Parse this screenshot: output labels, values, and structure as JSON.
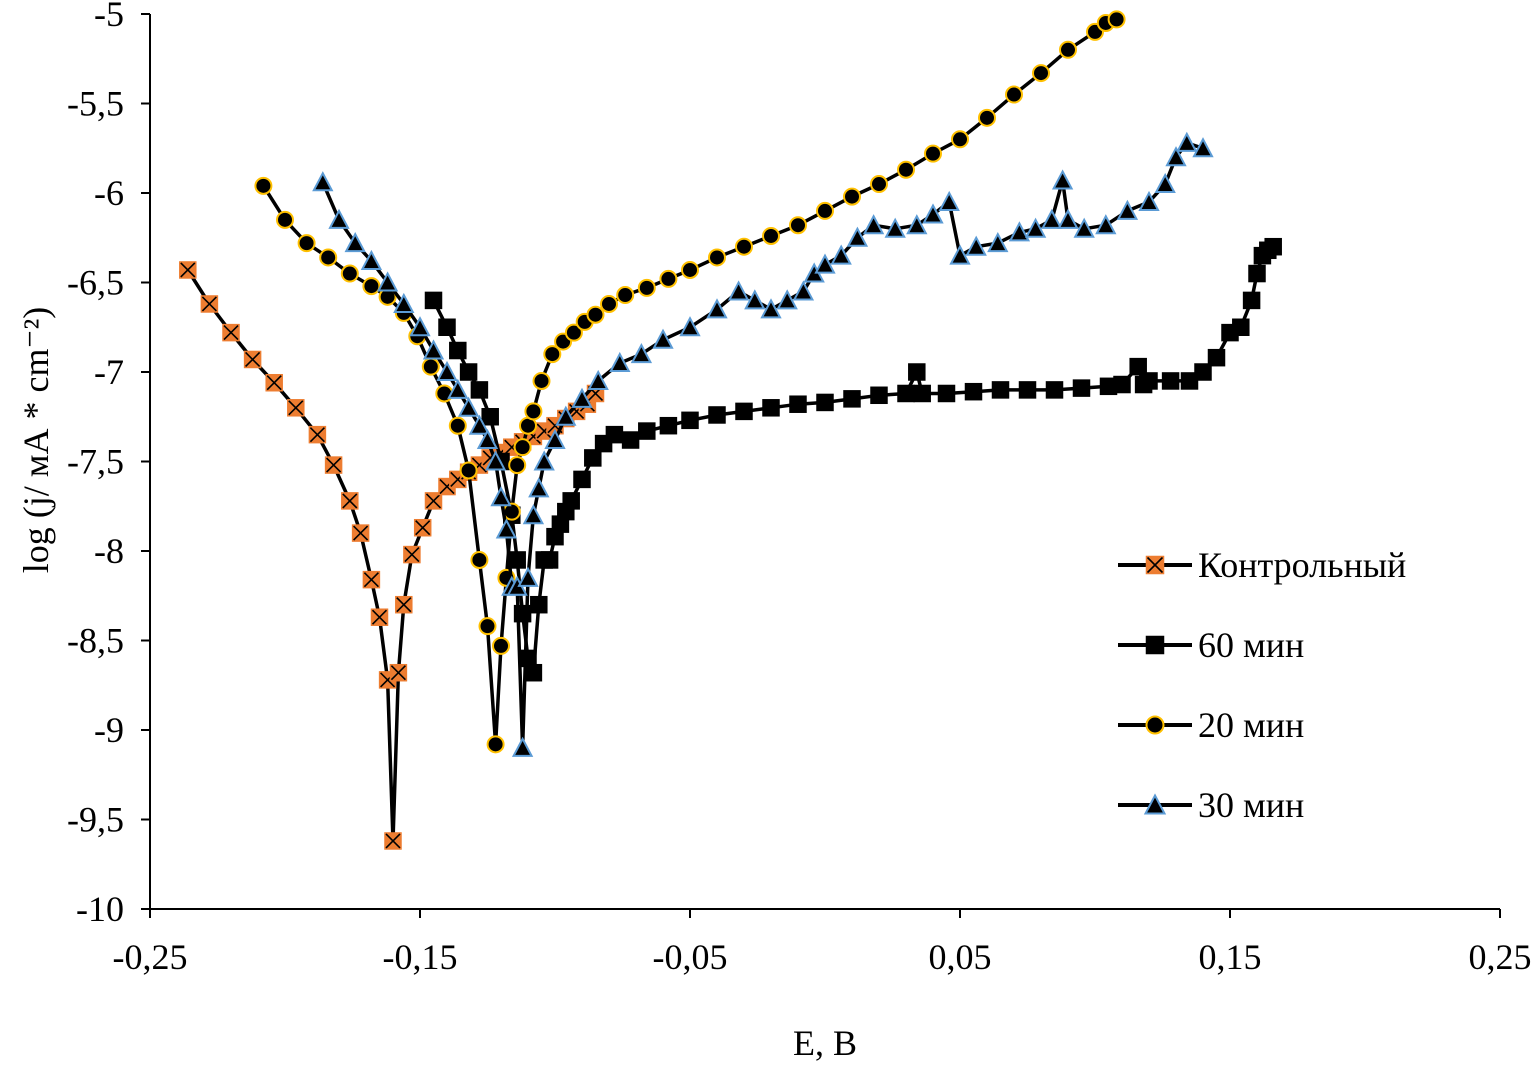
{
  "chart_data": {
    "type": "line",
    "title": "",
    "xlabel": "E, В",
    "ylabel": "log (j/ мА * cm⁻²)",
    "xlim": [
      -0.25,
      0.25
    ],
    "ylim": [
      -10,
      -5
    ],
    "x_ticks": [
      -0.25,
      -0.15,
      -0.05,
      0.05,
      0.15,
      0.25
    ],
    "x_tick_labels": [
      "-0,25",
      "-0,15",
      "-0,05",
      "0,05",
      "0,15",
      "0,25"
    ],
    "y_ticks": [
      -10,
      -9.5,
      -9,
      -8.5,
      -8,
      -7.5,
      -7,
      -6.5,
      -6,
      -5.5,
      -5
    ],
    "y_tick_labels": [
      "-10",
      "-9,5",
      "-9",
      "-8,5",
      "-8",
      "-7,5",
      "-7",
      "-6,5",
      "-6",
      "-5,5",
      "-5"
    ],
    "grid": false,
    "legend_position": "right",
    "series": [
      {
        "name": "Контрольный",
        "marker": "x-square",
        "line_color": "#000000",
        "marker_fill": "#ed7d31",
        "marker_stroke": "#ed7d31",
        "x": [
          -0.236,
          -0.228,
          -0.22,
          -0.212,
          -0.204,
          -0.196,
          -0.188,
          -0.182,
          -0.176,
          -0.172,
          -0.168,
          -0.165,
          -0.162,
          -0.16,
          -0.158,
          -0.156,
          -0.153,
          -0.149,
          -0.145,
          -0.14,
          -0.136,
          -0.132,
          -0.128,
          -0.124,
          -0.12,
          -0.116,
          -0.112,
          -0.108,
          -0.104,
          -0.1,
          -0.096,
          -0.092,
          -0.088,
          -0.085
        ],
        "y": [
          -6.43,
          -6.62,
          -6.78,
          -6.93,
          -7.06,
          -7.2,
          -7.35,
          -7.52,
          -7.72,
          -7.9,
          -8.16,
          -8.37,
          -8.72,
          -9.62,
          -8.68,
          -8.3,
          -8.02,
          -7.87,
          -7.72,
          -7.64,
          -7.6,
          -7.56,
          -7.52,
          -7.48,
          -7.45,
          -7.42,
          -7.39,
          -7.36,
          -7.33,
          -7.3,
          -7.26,
          -7.22,
          -7.18,
          -7.12
        ]
      },
      {
        "name": "60 мин",
        "marker": "square",
        "line_color": "#000000",
        "marker_fill": "#000000",
        "marker_stroke": "#000000",
        "x": [
          -0.145,
          -0.14,
          -0.136,
          -0.132,
          -0.128,
          -0.124,
          -0.12,
          -0.116,
          -0.114,
          -0.112,
          -0.11,
          -0.108,
          -0.106,
          -0.104,
          -0.102,
          -0.1,
          -0.098,
          -0.096,
          -0.094,
          -0.09,
          -0.086,
          -0.082,
          -0.078,
          -0.072,
          -0.066,
          -0.058,
          -0.05,
          -0.04,
          -0.03,
          -0.02,
          -0.01,
          0.0,
          0.01,
          0.02,
          0.03,
          0.034,
          0.036,
          0.045,
          0.055,
          0.065,
          0.075,
          0.085,
          0.095,
          0.105,
          0.11,
          0.116,
          0.118,
          0.12,
          0.128,
          0.135,
          0.14,
          0.145,
          0.15,
          0.154,
          0.158,
          0.16,
          0.162,
          0.164,
          0.166
        ],
        "y": [
          -6.6,
          -6.75,
          -6.88,
          -7.0,
          -7.1,
          -7.25,
          -7.5,
          -7.8,
          -8.05,
          -8.35,
          -8.6,
          -8.68,
          -8.3,
          -8.05,
          -8.05,
          -7.92,
          -7.85,
          -7.78,
          -7.72,
          -7.6,
          -7.48,
          -7.4,
          -7.35,
          -7.38,
          -7.33,
          -7.3,
          -7.27,
          -7.24,
          -7.22,
          -7.2,
          -7.18,
          -7.17,
          -7.15,
          -7.13,
          -7.12,
          -7.0,
          -7.12,
          -7.12,
          -7.11,
          -7.1,
          -7.1,
          -7.1,
          -7.09,
          -7.08,
          -7.07,
          -6.97,
          -7.07,
          -7.05,
          -7.05,
          -7.05,
          -7.0,
          -6.92,
          -6.78,
          -6.75,
          -6.6,
          -6.45,
          -6.35,
          -6.32,
          -6.3
        ]
      },
      {
        "name": "20 мин",
        "marker": "circle",
        "line_color": "#000000",
        "marker_fill": "#000000",
        "marker_stroke": "#ffc000",
        "x": [
          -0.208,
          -0.2,
          -0.192,
          -0.184,
          -0.176,
          -0.168,
          -0.162,
          -0.156,
          -0.151,
          -0.146,
          -0.141,
          -0.136,
          -0.132,
          -0.128,
          -0.125,
          -0.122,
          -0.12,
          -0.118,
          -0.116,
          -0.114,
          -0.112,
          -0.11,
          -0.108,
          -0.105,
          -0.101,
          -0.097,
          -0.093,
          -0.089,
          -0.085,
          -0.08,
          -0.074,
          -0.066,
          -0.058,
          -0.05,
          -0.04,
          -0.03,
          -0.02,
          -0.01,
          0.0,
          0.01,
          0.02,
          0.03,
          0.04,
          0.05,
          0.06,
          0.07,
          0.08,
          0.09,
          0.1,
          0.104,
          0.108
        ],
        "y": [
          -5.96,
          -6.15,
          -6.28,
          -6.36,
          -6.45,
          -6.52,
          -6.58,
          -6.67,
          -6.8,
          -6.97,
          -7.12,
          -7.3,
          -7.55,
          -8.05,
          -8.42,
          -9.08,
          -8.53,
          -8.15,
          -7.78,
          -7.52,
          -7.42,
          -7.3,
          -7.22,
          -7.05,
          -6.9,
          -6.83,
          -6.78,
          -6.72,
          -6.68,
          -6.62,
          -6.57,
          -6.53,
          -6.48,
          -6.43,
          -6.36,
          -6.3,
          -6.24,
          -6.18,
          -6.1,
          -6.02,
          -5.95,
          -5.87,
          -5.78,
          -5.7,
          -5.58,
          -5.45,
          -5.33,
          -5.2,
          -5.1,
          -5.05,
          -5.03
        ]
      },
      {
        "name": "30 мин",
        "marker": "triangle",
        "line_color": "#000000",
        "marker_fill": "#000000",
        "marker_stroke": "#5b9bd5",
        "x": [
          -0.186,
          -0.18,
          -0.174,
          -0.168,
          -0.162,
          -0.156,
          -0.15,
          -0.145,
          -0.14,
          -0.136,
          -0.132,
          -0.128,
          -0.125,
          -0.122,
          -0.12,
          -0.118,
          -0.116,
          -0.114,
          -0.112,
          -0.11,
          -0.108,
          -0.106,
          -0.104,
          -0.1,
          -0.096,
          -0.09,
          -0.084,
          -0.076,
          -0.068,
          -0.06,
          -0.05,
          -0.04,
          -0.032,
          -0.026,
          -0.02,
          -0.014,
          -0.008,
          -0.004,
          0.0,
          0.006,
          0.012,
          0.018,
          0.026,
          0.034,
          0.04,
          0.046,
          0.05,
          0.056,
          0.064,
          0.072,
          0.078,
          0.084,
          0.088,
          0.09,
          0.096,
          0.104,
          0.112,
          0.12,
          0.126,
          0.13,
          0.134,
          0.14
        ],
        "y": [
          -5.94,
          -6.15,
          -6.28,
          -6.38,
          -6.5,
          -6.62,
          -6.75,
          -6.88,
          -7.0,
          -7.1,
          -7.2,
          -7.3,
          -7.38,
          -7.5,
          -7.7,
          -7.88,
          -8.2,
          -8.2,
          -9.1,
          -8.15,
          -7.8,
          -7.65,
          -7.5,
          -7.38,
          -7.25,
          -7.15,
          -7.05,
          -6.95,
          -6.9,
          -6.82,
          -6.75,
          -6.65,
          -6.55,
          -6.6,
          -6.65,
          -6.6,
          -6.55,
          -6.45,
          -6.4,
          -6.35,
          -6.25,
          -6.18,
          -6.2,
          -6.18,
          -6.12,
          -6.05,
          -6.35,
          -6.3,
          -6.28,
          -6.22,
          -6.2,
          -6.15,
          -5.93,
          -6.15,
          -6.2,
          -6.18,
          -6.1,
          -6.05,
          -5.95,
          -5.8,
          -5.72,
          -5.75
        ]
      }
    ]
  }
}
